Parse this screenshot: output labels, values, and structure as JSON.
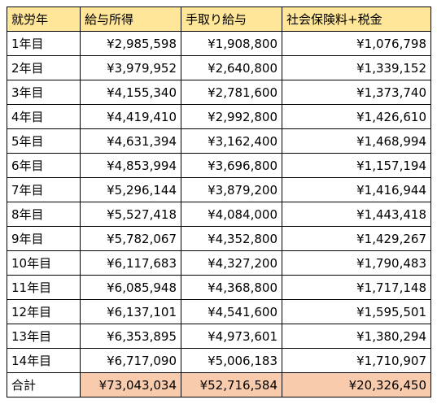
{
  "table": {
    "header": [
      "就労年",
      "給与所得",
      "手取り給与",
      "社会保険料+税金"
    ],
    "rows": [
      [
        "1年目",
        "¥2,985,598",
        "¥1,908,800",
        "¥1,076,798"
      ],
      [
        "2年目",
        "¥3,979,952",
        "¥2,640,800",
        "¥1,339,152"
      ],
      [
        "3年目",
        "¥4,155,340",
        "¥2,781,600",
        "¥1,373,740"
      ],
      [
        "4年目",
        "¥4,419,410",
        "¥2,992,800",
        "¥1,426,610"
      ],
      [
        "5年目",
        "¥4,631,394",
        "¥3,162,400",
        "¥1,468,994"
      ],
      [
        "6年目",
        "¥4,853,994",
        "¥3,696,800",
        "¥1,157,194"
      ],
      [
        "7年目",
        "¥5,296,144",
        "¥3,879,200",
        "¥1,416,944"
      ],
      [
        "8年目",
        "¥5,527,418",
        "¥4,084,000",
        "¥1,443,418"
      ],
      [
        "9年目",
        "¥5,782,067",
        "¥4,352,800",
        "¥1,429,267"
      ],
      [
        "10年目",
        "¥6,117,683",
        "¥4,327,200",
        "¥1,790,483"
      ],
      [
        "11年目",
        "¥6,085,948",
        "¥4,368,800",
        "¥1,717,148"
      ],
      [
        "12年目",
        "¥6,137,101",
        "¥4,541,600",
        "¥1,595,501"
      ],
      [
        "13年目",
        "¥6,353,895",
        "¥4,973,601",
        "¥1,380,294"
      ],
      [
        "14年目",
        "¥6,717,090",
        "¥5,006,183",
        "¥1,710,907"
      ]
    ],
    "total": [
      "合計",
      "¥73,043,034",
      "¥52,716,584",
      "¥20,326,450"
    ]
  }
}
